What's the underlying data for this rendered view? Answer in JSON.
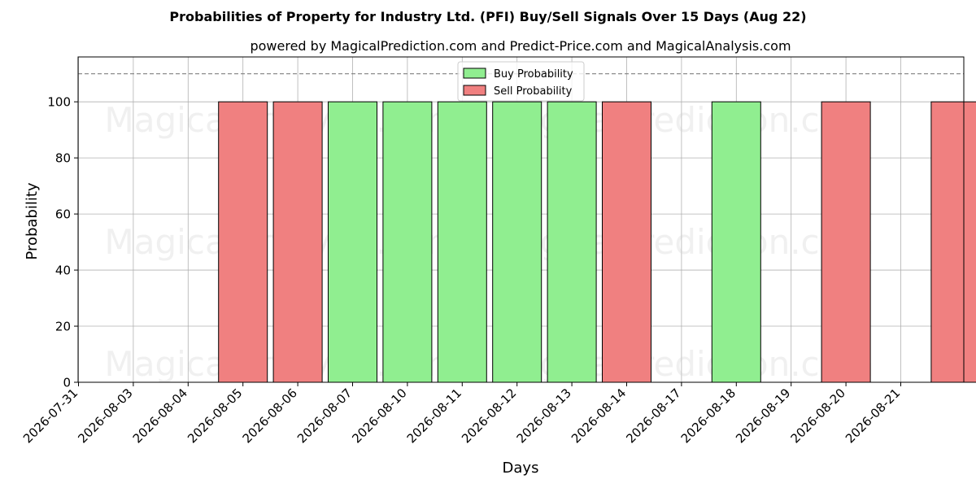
{
  "chart_data": {
    "type": "bar",
    "title": "Probabilities of Property for Industry Ltd. (PFI) Buy/Sell Signals Over 15 Days (Aug 22)",
    "subtitle": "powered by MagicalPrediction.com and Predict-Price.com and MagicalAnalysis.com",
    "xlabel": "Days",
    "ylabel": "Probability",
    "ylim": [
      0,
      116
    ],
    "yticks": [
      0,
      20,
      40,
      60,
      80,
      100
    ],
    "reference_line": 110,
    "grid": true,
    "legend_position": "top-center",
    "categories": [
      "2026-07-31",
      "2026-08-03",
      "2026-08-04",
      "2026-08-05",
      "2026-08-06",
      "2026-08-07",
      "2026-08-10",
      "2026-08-11",
      "2026-08-12",
      "2026-08-13",
      "2026-08-14",
      "2026-08-17",
      "2026-08-18",
      "2026-08-19",
      "2026-08-20",
      "2026-08-21"
    ],
    "series": [
      {
        "name": "Buy Probability",
        "color": "#90ee90",
        "values": [
          0,
          0,
          0,
          0,
          100,
          100,
          100,
          100,
          100,
          0,
          0,
          100,
          0,
          0,
          0,
          0
        ]
      },
      {
        "name": "Sell Probability",
        "color": "#f08080",
        "values": [
          0,
          0,
          100,
          100,
          0,
          0,
          0,
          0,
          0,
          100,
          0,
          0,
          0,
          100,
          0,
          100
        ]
      }
    ]
  },
  "watermarks": [
    "MagicalAnalysis.com",
    "MagicalPrediction.com"
  ]
}
